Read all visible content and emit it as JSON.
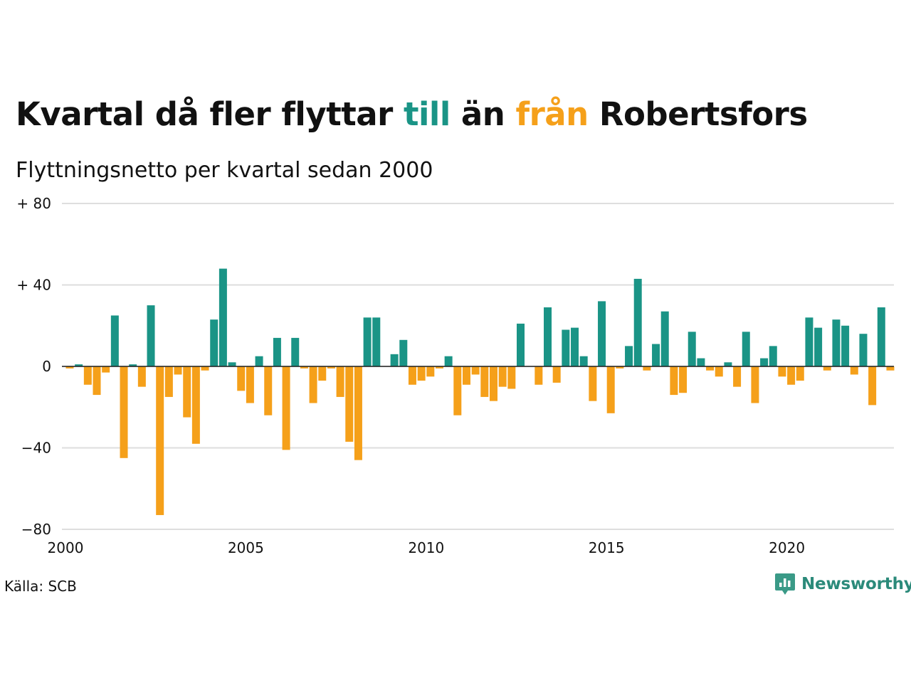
{
  "title": {
    "part1": "Kvartal då fler flyttar ",
    "highlight_pos": "till",
    "part2": " än ",
    "highlight_neg": "från",
    "part3": " Robertsfors"
  },
  "subtitle": "Flyttningsnetto per kvartal sedan 2000",
  "source": "Källa: SCB",
  "brand": "Newsworthy",
  "colors": {
    "positive": "#1a9486",
    "negative": "#f5a01a",
    "grid": "#dedede",
    "brand": "#2b8a7a"
  },
  "chart_data": {
    "type": "bar",
    "x_start": "2000 Q1",
    "x_ticks": [
      "2000",
      "2005",
      "2010",
      "2015",
      "2020"
    ],
    "y_ticks": [
      "+ 80",
      "+ 40",
      "0",
      "−40",
      "−80"
    ],
    "ylim": [
      -80,
      80
    ],
    "grid": true,
    "values": [
      -1,
      1,
      -9,
      -14,
      -3,
      25,
      -45,
      1,
      -10,
      30,
      -73,
      -15,
      -4,
      -25,
      -38,
      -2,
      23,
      48,
      2,
      -12,
      -18,
      5,
      -24,
      14,
      -41,
      14,
      -1,
      -18,
      -7,
      -1,
      -15,
      -37,
      -46,
      24,
      24,
      0,
      6,
      13,
      -9,
      -7,
      -5,
      -1,
      5,
      -24,
      -9,
      -4,
      -15,
      -17,
      -10,
      -11,
      21,
      0,
      -9,
      29,
      -8,
      18,
      19,
      5,
      -17,
      32,
      -23,
      -1,
      10,
      43,
      -2,
      11,
      27,
      -14,
      -13,
      17,
      4,
      -2,
      -5,
      2,
      -10,
      17,
      -18,
      4,
      10,
      -5,
      -9,
      -7,
      24,
      19,
      -2,
      23,
      20,
      -4,
      16,
      -19,
      29,
      -2
    ]
  }
}
